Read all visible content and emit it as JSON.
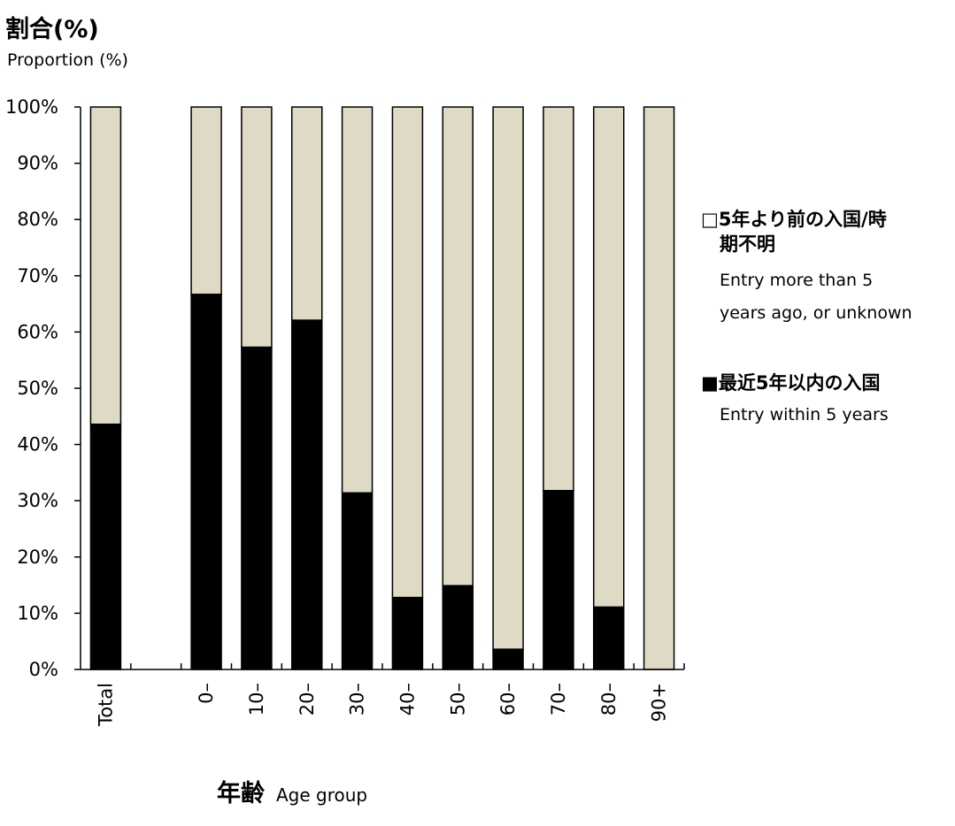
{
  "chart_data": {
    "type": "bar",
    "stacked": true,
    "percent": true,
    "title": "",
    "y_axis_title_jp": "割合(%)",
    "y_axis_title_en": "Proportion (%)",
    "x_axis_title_jp": "年齢",
    "x_axis_title_en": "Age group",
    "categories": [
      "Total",
      "",
      "0–",
      "10–",
      "20–",
      "30–",
      "40–",
      "50–",
      "60–",
      "70–",
      "80–",
      "90+"
    ],
    "series": [
      {
        "name": "最近5年以内の入国",
        "name_en": "Entry within 5 years",
        "legend_label_jp": "■最近5年以内の入国",
        "color": "#000000",
        "values": [
          43.6,
          null,
          66.7,
          57.3,
          62.1,
          31.4,
          12.8,
          14.9,
          3.6,
          31.8,
          11.1,
          0
        ]
      },
      {
        "name": "5年より前の入国/時期不明",
        "name_en": "Entry more than 5 years ago, or unknown",
        "legend_label_jp_lines": [
          "□5年より前の入国/時",
          "期不明"
        ],
        "legend_label_en_lines": [
          "Entry more than 5",
          "years ago, or unknown"
        ],
        "color": "#dedac6",
        "values": [
          56.4,
          null,
          33.3,
          42.7,
          37.9,
          68.6,
          87.2,
          85.1,
          96.4,
          68.2,
          88.9,
          100
        ]
      }
    ],
    "y_ticks": [
      "0%",
      "10%",
      "20%",
      "30%",
      "40%",
      "50%",
      "60%",
      "70%",
      "80%",
      "90%",
      "100%"
    ],
    "ylim": [
      0,
      100
    ],
    "grid": false,
    "legend_position": "right"
  }
}
